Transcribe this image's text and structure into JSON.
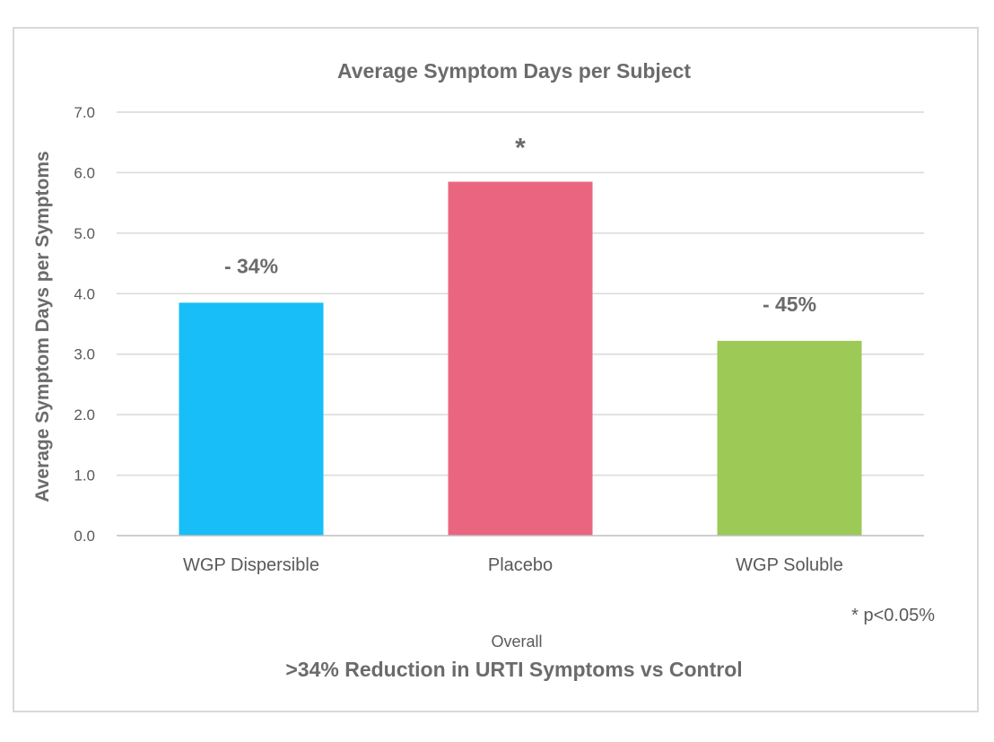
{
  "chart_data": {
    "type": "bar",
    "title": "Average Symptom Days per Subject",
    "ylabel": "Average Symptom Days per Symptoms",
    "xlabel": "Overall",
    "subtitle": ">34% Reduction in URTI Symptoms vs Control",
    "footnote": "* p<0.05%",
    "categories": [
      "WGP Dispersible",
      "Placebo",
      "WGP Soluble"
    ],
    "values": [
      3.85,
      5.85,
      3.22
    ],
    "colors": [
      "#17BEF7",
      "#EA6680",
      "#9DC957"
    ],
    "data_labels": [
      "- 34%",
      "*",
      "- 45%"
    ],
    "ylim": [
      0,
      7
    ],
    "yticks": [
      "0.0",
      "1.0",
      "2.0",
      "3.0",
      "4.0",
      "5.0",
      "6.0",
      "7.0"
    ],
    "grid": true,
    "legend": "none"
  }
}
